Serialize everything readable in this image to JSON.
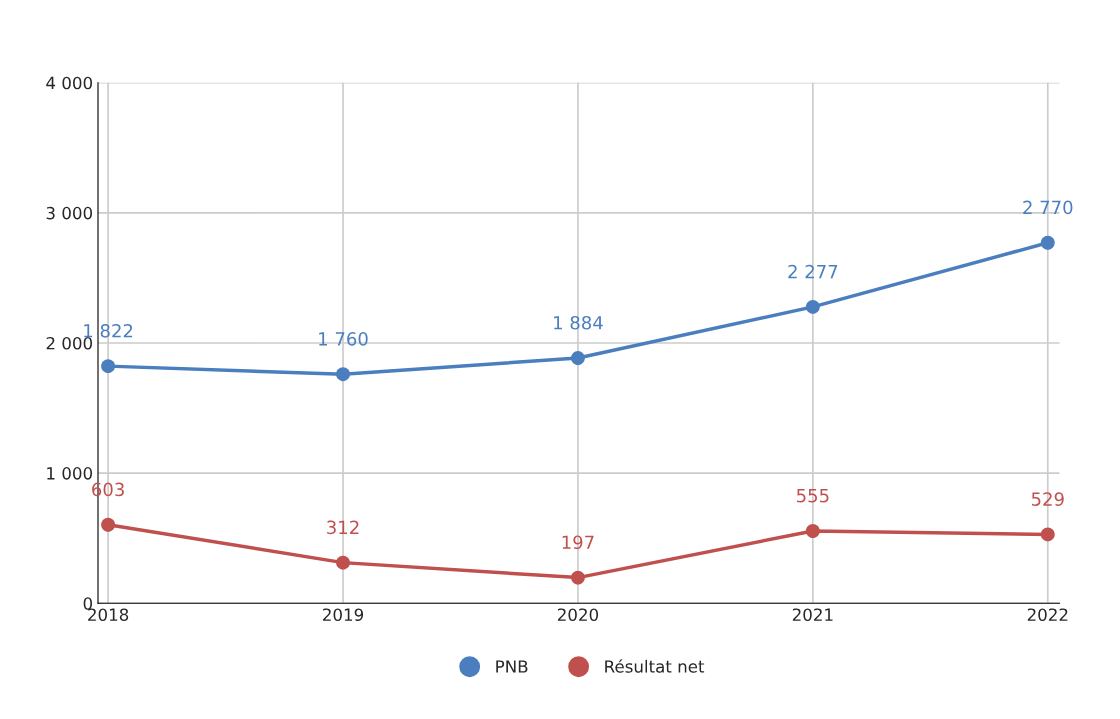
{
  "chart_data": {
    "type": "line",
    "categories": [
      "2018",
      "2019",
      "2020",
      "2021",
      "2022"
    ],
    "series": [
      {
        "name": "PNB",
        "color": "#4a7ebf",
        "values": [
          1822,
          1760,
          1884,
          2277,
          2770
        ],
        "value_labels": [
          "1 822",
          "1 760",
          "1 884",
          "2 277",
          "2 770"
        ]
      },
      {
        "name": "Résultat net",
        "color": "#c0504d",
        "values": [
          603,
          312,
          197,
          555,
          529
        ],
        "value_labels": [
          "603",
          "312",
          "197",
          "555",
          "529"
        ]
      }
    ],
    "ylim": [
      0,
      4000
    ],
    "yticks": [
      0,
      {
        "value": 1000,
        "label": "1 000"
      },
      {
        "value": 2000,
        "label": "2 000"
      },
      {
        "value": 3000,
        "label": "3 000"
      },
      {
        "value": 4000,
        "label": "4 000"
      }
    ],
    "grid": true,
    "legend": "bottom",
    "marker": "circle",
    "line_style": "solid"
  }
}
